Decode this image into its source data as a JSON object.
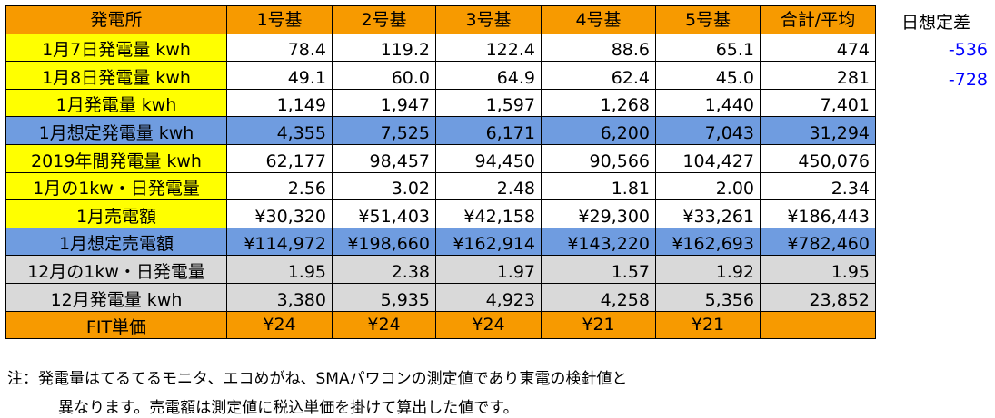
{
  "header": {
    "label": "発電所",
    "columns": [
      "1号基",
      "2号基",
      "3号基",
      "4号基",
      "5号基",
      "合計/平均"
    ]
  },
  "rows": [
    {
      "label": "1月7日発電量 kwh",
      "values": [
        "78.4",
        "119.2",
        "122.4",
        "88.6",
        "65.1",
        "474"
      ]
    },
    {
      "label": "1月8日発電量 kwh",
      "values": [
        "49.1",
        "60.0",
        "64.9",
        "62.4",
        "45.0",
        "281"
      ]
    },
    {
      "label": "1月発電量 kwh",
      "values": [
        "1,149",
        "1,947",
        "1,597",
        "1,268",
        "1,440",
        "7,401"
      ]
    },
    {
      "label": "1月想定発電量 kwh",
      "values": [
        "4,355",
        "7,525",
        "6,171",
        "6,200",
        "7,043",
        "31,294"
      ]
    },
    {
      "label": "2019年間発電量 kwh",
      "values": [
        "62,177",
        "98,457",
        "94,450",
        "90,566",
        "104,427",
        "450,076"
      ]
    },
    {
      "label": "1月の1kw・日発電量",
      "values": [
        "2.56",
        "3.02",
        "2.48",
        "1.81",
        "2.00",
        "2.34"
      ]
    },
    {
      "label": "1月売電額",
      "values": [
        "¥30,320",
        "¥51,403",
        "¥42,158",
        "¥29,300",
        "¥33,261",
        "¥186,443"
      ]
    },
    {
      "label": "1月想定売電額",
      "values": [
        "¥114,972",
        "¥198,660",
        "¥162,914",
        "¥143,220",
        "¥162,693",
        "¥782,460"
      ]
    },
    {
      "label": "12月の1kw・日発電量",
      "values": [
        "1.95",
        "2.38",
        "1.97",
        "1.57",
        "1.92",
        "1.95"
      ]
    },
    {
      "label": "12月発電量 kwh",
      "values": [
        "3,380",
        "5,935",
        "4,923",
        "4,258",
        "5,356",
        "23,852"
      ]
    },
    {
      "label": "FIT単価",
      "values": [
        "¥24",
        "¥24",
        "¥24",
        "¥21",
        "¥21",
        ""
      ]
    }
  ],
  "side": {
    "header": "日想定差",
    "values": [
      "-536",
      "-728"
    ]
  },
  "notes": [
    "注：発電量はてるてるモニタ、エコめがね、SMAパワコンの測定値であり東電の検針値と",
    "異なります。売電額は測定値に税込単価を掛けて算出した値です。"
  ],
  "colors": {
    "orange": "#f79a00",
    "yellow": "#ffff00",
    "blue": "#6f9ce0",
    "gray": "#d9d9d9",
    "diff_text": "#0000ff"
  }
}
